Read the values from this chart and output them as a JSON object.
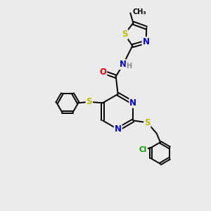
{
  "bg_color": "#ebebeb",
  "atom_colors": {
    "C": "#000000",
    "N": "#0000cc",
    "O": "#ee0000",
    "S": "#bbbb00",
    "H": "#888888",
    "Cl": "#009900"
  },
  "bond_color": "#000000",
  "bond_lw": 1.4,
  "font_size_atom": 8.5,
  "font_size_small": 7.0
}
